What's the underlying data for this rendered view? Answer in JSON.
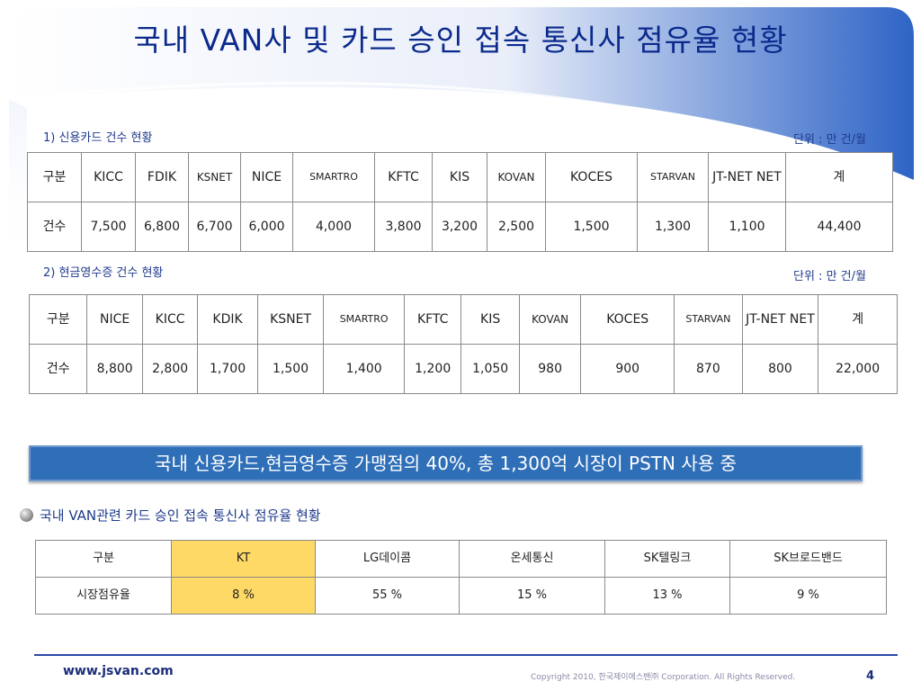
{
  "title": "국내 VAN사 및 카드 승인 접속 통신사 점유율 현황",
  "section1": {
    "caption": "1) 신용카드 건수 현황",
    "unit": "단위 : 만 건/월",
    "header": [
      "구분",
      "KICC",
      "FDIK",
      "KSNET",
      "NICE",
      "SMARTRO",
      "KFTC",
      "KIS",
      "KOVAN",
      "KOCES",
      "STARVAN",
      "JT-NET NET",
      "계"
    ],
    "row": [
      "건수",
      "7,500",
      "6,800",
      "6,700",
      "6,000",
      "4,000",
      "3,800",
      "3,200",
      "2,500",
      "1,500",
      "1,300",
      "1,100",
      "44,400"
    ]
  },
  "section2": {
    "caption": "2) 현금영수증 건수 현황",
    "unit": "단위 : 만 건/월",
    "header": [
      "구분",
      "NICE",
      "KICC",
      "KDIK",
      "KSNET",
      "SMARTRO",
      "KFTC",
      "KIS",
      "KOVAN",
      "KOCES",
      "STARVAN",
      "JT-NET NET",
      "계"
    ],
    "row": [
      "건수",
      "8,800",
      "2,800",
      "1,700",
      "1,500",
      "1,400",
      "1,200",
      "1,050",
      "980",
      "900",
      "870",
      "800",
      "22,000"
    ]
  },
  "banner": "국내 신용카드,현금영수증 가맹점의 40%, 총 1,300억 시장이 PSTN 사용 중",
  "section3": {
    "caption": "국내 VAN관련 카드 승인 접속 통신사 점유율 현황",
    "header": [
      "구분",
      "KT",
      "LG데이콤",
      "온세통신",
      "SK텔링크",
      "SK브로드밴드"
    ],
    "row": [
      "시장점유율",
      "8 %",
      "55 %",
      "15 %",
      "13 %",
      "9 %"
    ],
    "highlight_color": "#ffd966"
  },
  "footer": {
    "url": "www.jsvan.com",
    "copyright": "Copyright 2010, 한국제이에스밴㈜ Corporation. All Rights Reserved.",
    "page": "4"
  },
  "colors": {
    "title": "#0b2a8c",
    "banner": "#2f6fb8",
    "accent": "#1f3a8c"
  }
}
